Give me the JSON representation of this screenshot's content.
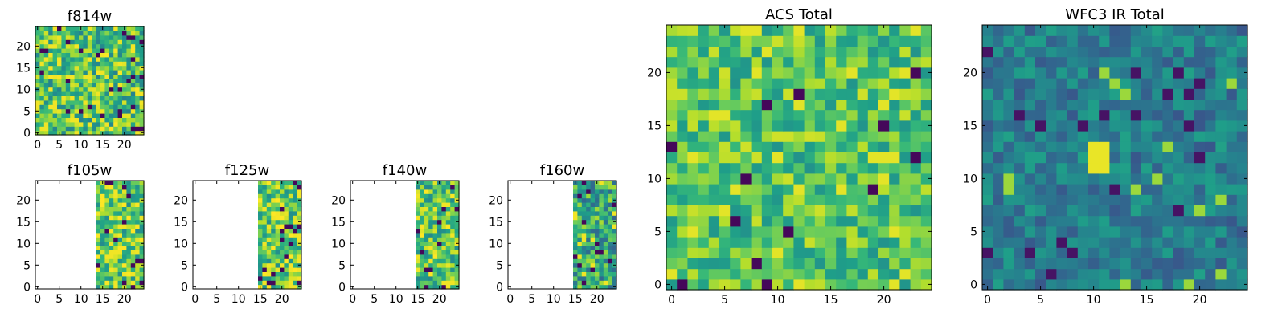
{
  "chart_data": [
    {
      "type": "heatmap",
      "title": "f814w",
      "xlim": [
        0,
        25
      ],
      "ylim": [
        0,
        25
      ],
      "xticks": [
        "0",
        "5",
        "10",
        "15",
        "20"
      ],
      "yticks": [
        "0",
        "5",
        "10",
        "15",
        "20"
      ],
      "colormap": "viridis",
      "coverage_x": [
        0,
        25
      ],
      "contrast": "high",
      "mean_level": 0.72
    },
    {
      "type": "heatmap",
      "title": "f105w",
      "xlim": [
        0,
        25
      ],
      "ylim": [
        0,
        25
      ],
      "xticks": [
        "0",
        "5",
        "10",
        "15",
        "20"
      ],
      "yticks": [
        "0",
        "5",
        "10",
        "15",
        "20"
      ],
      "colormap": "viridis",
      "coverage_x": [
        14,
        25
      ],
      "contrast": "high",
      "mean_level": 0.75
    },
    {
      "type": "heatmap",
      "title": "f125w",
      "xlim": [
        0,
        25
      ],
      "ylim": [
        0,
        25
      ],
      "xticks": [
        "0",
        "5",
        "10",
        "15",
        "20"
      ],
      "yticks": [
        "0",
        "5",
        "10",
        "15",
        "20"
      ],
      "colormap": "viridis",
      "coverage_x": [
        15,
        25
      ],
      "contrast": "high",
      "mean_level": 0.76
    },
    {
      "type": "heatmap",
      "title": "f140w",
      "xlim": [
        0,
        25
      ],
      "ylim": [
        0,
        25
      ],
      "xticks": [
        "0",
        "5",
        "10",
        "15",
        "20"
      ],
      "yticks": [
        "0",
        "5",
        "10",
        "15",
        "20"
      ],
      "colormap": "viridis",
      "coverage_x": [
        15,
        25
      ],
      "contrast": "high",
      "mean_level": 0.74
    },
    {
      "type": "heatmap",
      "title": "f160w",
      "xlim": [
        0,
        25
      ],
      "ylim": [
        0,
        25
      ],
      "xticks": [
        "0",
        "5",
        "10",
        "15",
        "20"
      ],
      "yticks": [
        "0",
        "5",
        "10",
        "15",
        "20"
      ],
      "colormap": "viridis",
      "coverage_x": [
        15,
        25
      ],
      "contrast": "high",
      "mean_level": 0.6
    },
    {
      "type": "heatmap",
      "title": "ACS Total",
      "xlim": [
        0,
        25
      ],
      "ylim": [
        0,
        25
      ],
      "xticks": [
        "0",
        "5",
        "10",
        "15",
        "20"
      ],
      "yticks": [
        "0",
        "5",
        "10",
        "15",
        "20"
      ],
      "colormap": "viridis",
      "coverage_x": [
        0,
        25
      ],
      "contrast": "medium",
      "mean_level": 0.72
    },
    {
      "type": "heatmap",
      "title": "WFC3 IR Total",
      "xlim": [
        0,
        25
      ],
      "ylim": [
        0,
        25
      ],
      "xticks": [
        "0",
        "5",
        "10",
        "15",
        "20"
      ],
      "yticks": [
        "0",
        "5",
        "10",
        "15",
        "20"
      ],
      "colormap": "viridis",
      "coverage_x": [
        0,
        25
      ],
      "contrast": "low",
      "mean_level": 0.42,
      "bright_source": {
        "x": [
          10,
          12
        ],
        "y": [
          11,
          14
        ]
      }
    }
  ]
}
